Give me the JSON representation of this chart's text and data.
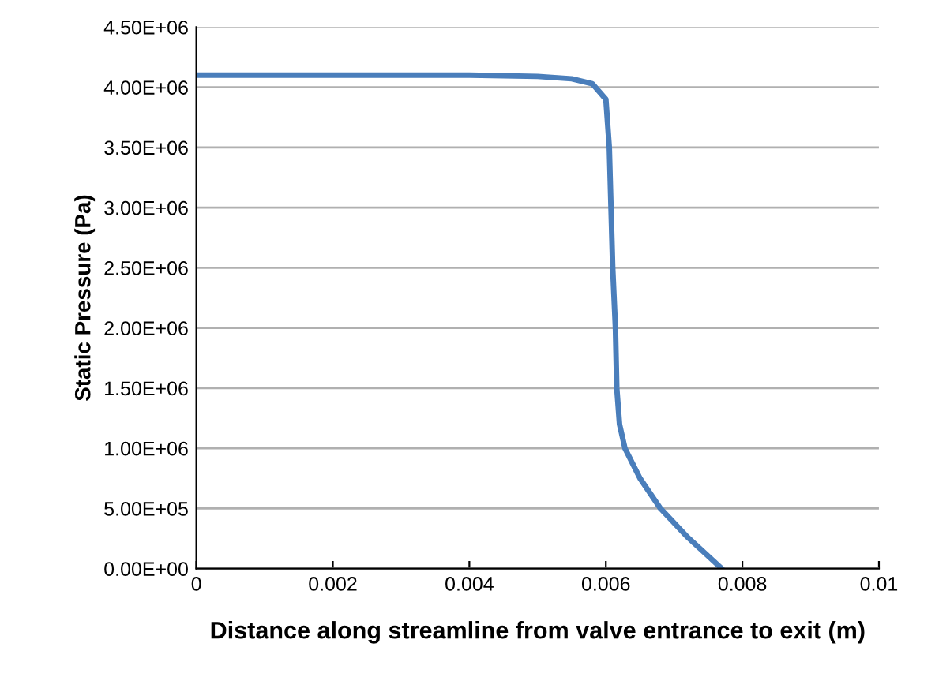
{
  "chart_data": {
    "type": "line",
    "xlabel": "Distance along streamline from valve entrance to exit (m)",
    "ylabel": "Static Pressure (Pa)",
    "x": [
      0,
      0.002,
      0.004,
      0.005,
      0.0055,
      0.0058,
      0.006,
      0.00605,
      0.0061,
      0.00614,
      0.00616,
      0.0062,
      0.00628,
      0.0065,
      0.0068,
      0.0072,
      0.0077
    ],
    "series": [
      {
        "color": "#4a7ebb",
        "values": [
          4100000,
          4100000,
          4100000,
          4090000,
          4070000,
          4030000,
          3900000,
          3500000,
          2500000,
          2000000,
          1500000,
          1200000,
          1000000,
          750000,
          500000,
          260000,
          0
        ]
      }
    ],
    "xlim": [
      0,
      0.01
    ],
    "xticks": [
      0,
      0.002,
      0.004,
      0.006,
      0.008,
      0.01
    ],
    "ylim": [
      0,
      4500000
    ],
    "yticks": [
      {
        "value": 0,
        "label": "0.00E+00"
      },
      {
        "value": 500000,
        "label": "5.00E+05"
      },
      {
        "value": 1000000,
        "label": "1.00E+06"
      },
      {
        "value": 1500000,
        "label": "1.50E+06"
      },
      {
        "value": 2000000,
        "label": "2.00E+06"
      },
      {
        "value": 2500000,
        "label": "2.50E+06"
      },
      {
        "value": 3000000,
        "label": "3.00E+06"
      },
      {
        "value": 3500000,
        "label": "3.50E+06"
      },
      {
        "value": 4000000,
        "label": "4.00E+06"
      },
      {
        "value": 4500000,
        "label": "4.50E+06"
      }
    ],
    "grid": "y",
    "legend": false,
    "marker": "none",
    "line_style": "solid"
  }
}
